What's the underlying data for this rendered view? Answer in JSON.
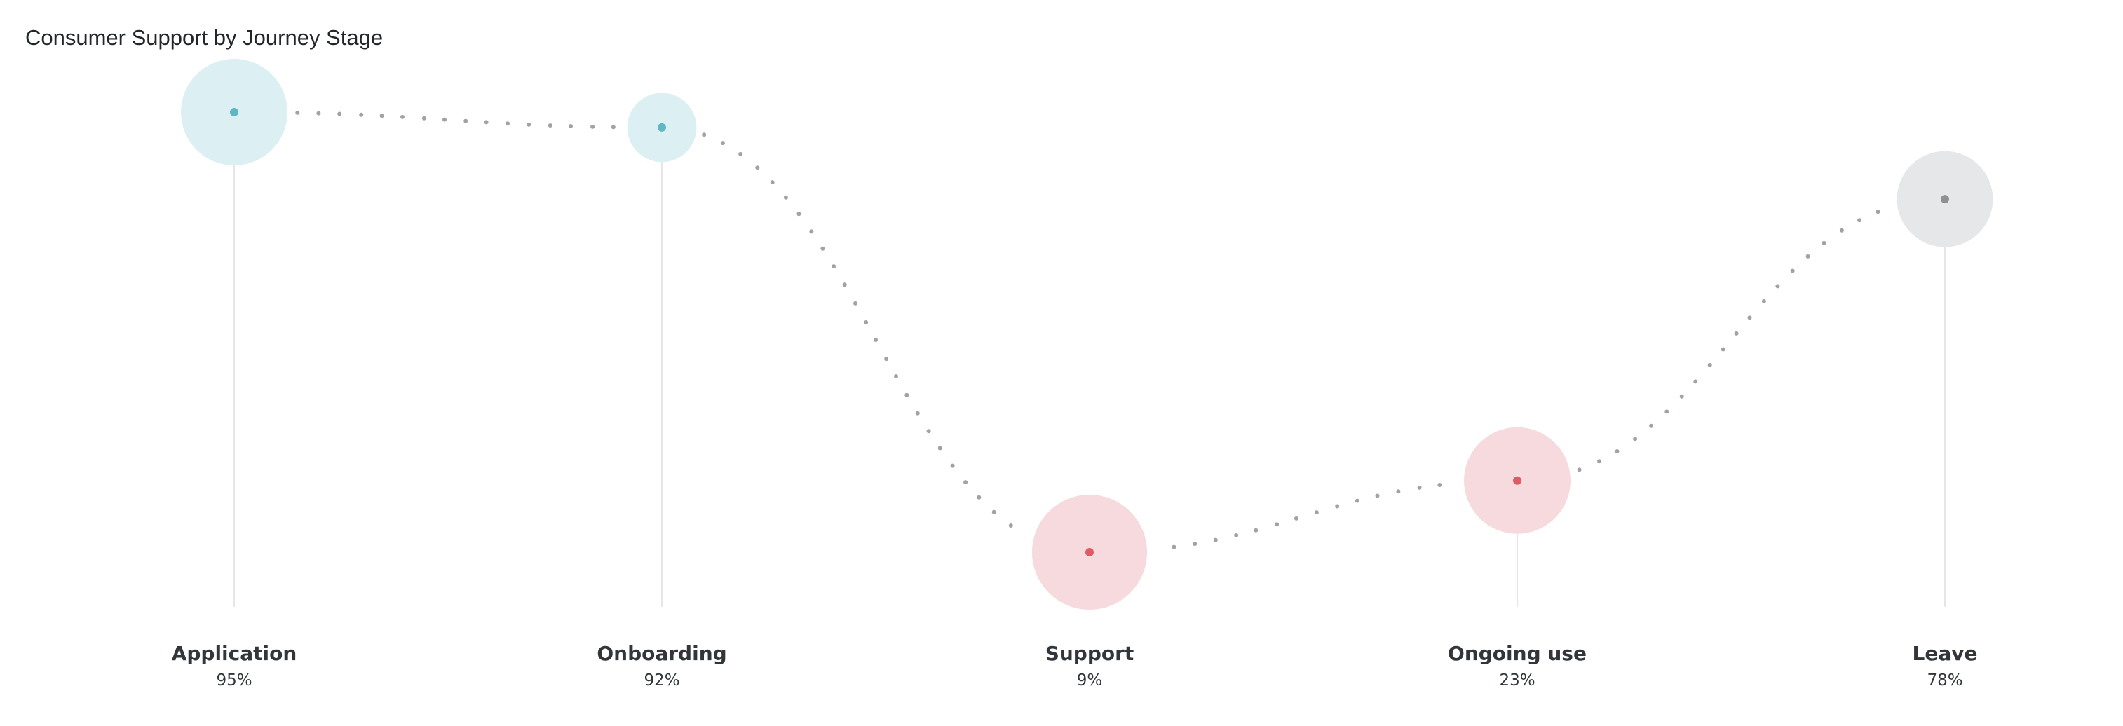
{
  "chart_data": {
    "type": "scatter",
    "title": "Consumer Support by Journey Stage",
    "xlabel": "",
    "ylabel": "",
    "ylim": [
      0,
      100
    ],
    "value_unit": "%",
    "categories": [
      "Application",
      "Onboarding",
      "Support",
      "Ongoing use",
      "Leave"
    ],
    "series": [
      {
        "values": [
          95,
          92,
          9,
          23,
          78
        ],
        "colors": [
          "#5fb7c6",
          "#5fb7c6",
          "#e05a64",
          "#e05a64",
          "#8e9094"
        ],
        "halo_colors": [
          "#dcf0f3",
          "#dcf0f3",
          "#f7dadd",
          "#f7dadd",
          "#e6e7e9"
        ],
        "relative_size": [
          1.0,
          0.65,
          1.08,
          1.0,
          0.9
        ]
      }
    ],
    "grid": false,
    "legend": "none",
    "connector_style": "dotted"
  },
  "colors": {
    "connector": "#a0a2a6",
    "stem": "#e5e6e8",
    "text": "#32363a"
  }
}
